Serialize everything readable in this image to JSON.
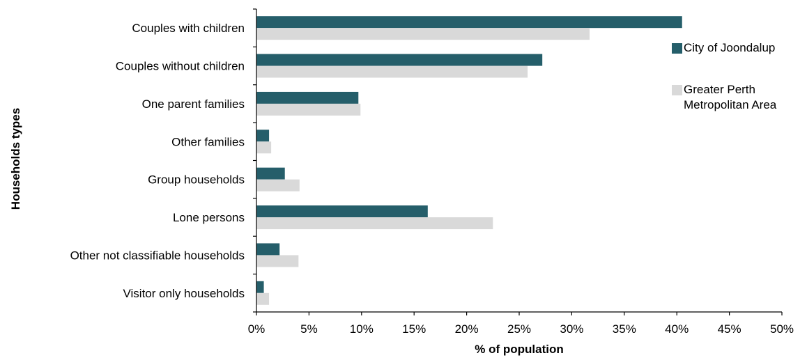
{
  "chart_data": {
    "type": "bar",
    "orientation": "horizontal",
    "categories": [
      "Couples with children",
      "Couples without children",
      "One parent families",
      "Other families",
      "Group households",
      "Lone persons",
      "Other not classifiable households",
      "Visitor only households"
    ],
    "series": [
      {
        "name": "City of Joondalup",
        "color": "#255e6a",
        "values": [
          40.5,
          27.2,
          9.7,
          1.2,
          2.7,
          16.3,
          2.2,
          0.7
        ]
      },
      {
        "name": "Greater Perth Metropolitan Area",
        "color": "#d9d9d9",
        "values": [
          31.7,
          25.8,
          9.9,
          1.4,
          4.1,
          22.5,
          4.0,
          1.2
        ]
      }
    ],
    "xlabel": "% of population",
    "ylabel": "Households types",
    "xlim": [
      0,
      50
    ],
    "xticks": [
      "0%",
      "5%",
      "10%",
      "15%",
      "20%",
      "25%",
      "30%",
      "35%",
      "40%",
      "45%",
      "50%"
    ],
    "grid": false,
    "legend_position": "right"
  },
  "legend": {
    "item1": "City of Joondalup",
    "item2_line1": "Greater Perth",
    "item2_line2": "Metropolitan Area"
  }
}
